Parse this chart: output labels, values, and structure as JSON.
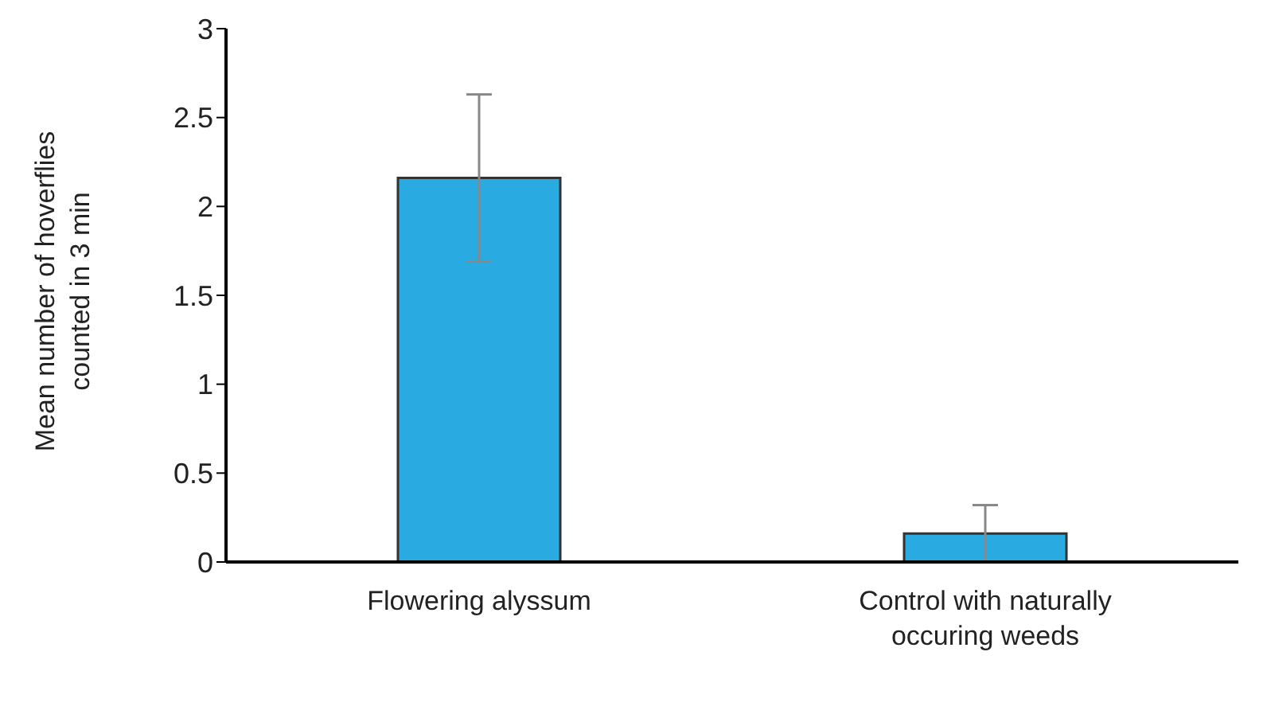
{
  "chart_data": {
    "type": "bar",
    "ylabel": "Mean number of hoverflies counted in 3 min",
    "categories": [
      "Flowering alyssum",
      "Control with naturally occuring weeds"
    ],
    "values": [
      2.16,
      0.16
    ],
    "errors": [
      0.47,
      0.16
    ],
    "color": "#29abe2",
    "ylim": [
      0,
      3
    ],
    "yticks": [
      0,
      0.5,
      1,
      1.5,
      2,
      2.5,
      3
    ],
    "grid": false,
    "legend": false
  }
}
